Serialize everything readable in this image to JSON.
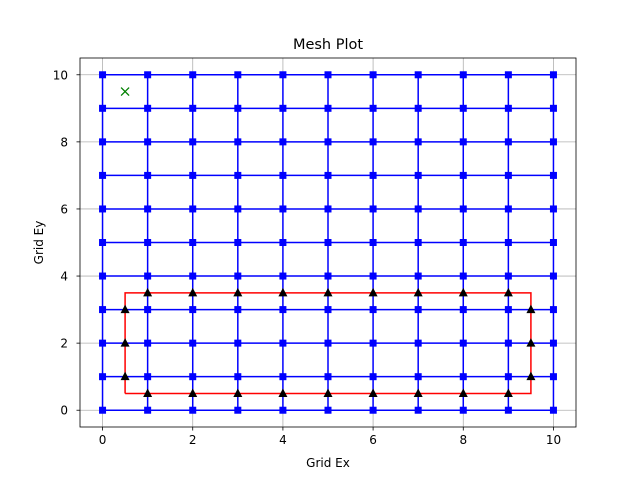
{
  "chart_data": {
    "type": "line",
    "title": "Mesh Plot",
    "xlabel": "Grid Ex",
    "ylabel": "Grid Ey",
    "xlim": [
      -0.5,
      10.5
    ],
    "ylim": [
      -0.5,
      10.5
    ],
    "xticks": [
      0,
      2,
      4,
      6,
      8,
      10
    ],
    "yticks": [
      0,
      2,
      4,
      6,
      8,
      10
    ],
    "grid": true,
    "mesh": {
      "x_nodes": [
        0,
        1,
        2,
        3,
        4,
        5,
        6,
        7,
        8,
        9,
        10
      ],
      "y_nodes": [
        0,
        1,
        2,
        3,
        4,
        5,
        6,
        7,
        8,
        9,
        10
      ],
      "color": "#0000ff",
      "marker": "square"
    },
    "boundary": {
      "color": "#ff0000",
      "x": [
        0.5,
        9.5,
        9.5,
        0.5,
        0.5
      ],
      "y": [
        0.5,
        0.5,
        3.5,
        3.5,
        0.5
      ]
    },
    "triangle_markers": {
      "color": "#000000",
      "marker": "triangle-up",
      "x": [
        1,
        2,
        3,
        4,
        5,
        6,
        7,
        8,
        9,
        1,
        2,
        3,
        4,
        5,
        6,
        7,
        8,
        9,
        0.5,
        0.5,
        0.5,
        9.5,
        9.5,
        9.5
      ],
      "y": [
        0.5,
        0.5,
        0.5,
        0.5,
        0.5,
        0.5,
        0.5,
        0.5,
        0.5,
        3.5,
        3.5,
        3.5,
        3.5,
        3.5,
        3.5,
        3.5,
        3.5,
        3.5,
        1,
        2,
        3,
        1,
        2,
        3
      ]
    },
    "x_marker": {
      "color": "#008000",
      "x": 0.5,
      "y": 9.5
    }
  }
}
